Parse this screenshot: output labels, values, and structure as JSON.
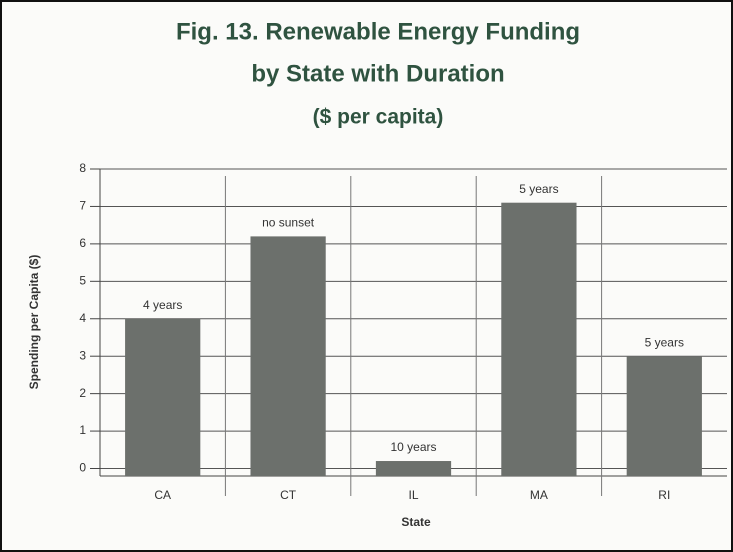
{
  "chart_data": {
    "type": "bar",
    "title": "Fig. 13. Renewable Energy Funding",
    "subtitle": "by State with Duration",
    "unit_note": "($ per capita)",
    "x_label": "State",
    "y_label": "Spending per Capita ($)",
    "categories": [
      "CA",
      "CT",
      "IL",
      "MA",
      "RI"
    ],
    "values": [
      4.0,
      6.2,
      0.2,
      7.1,
      3.0
    ],
    "annotations": [
      "4 years",
      "no sunset",
      "10 years",
      "5 years",
      "5 years"
    ],
    "color": "#6c706c",
    "ylim": [
      -0.2,
      8
    ],
    "yticks": [
      0,
      1,
      2,
      3,
      4,
      5,
      6,
      7,
      8
    ],
    "grid": true
  }
}
